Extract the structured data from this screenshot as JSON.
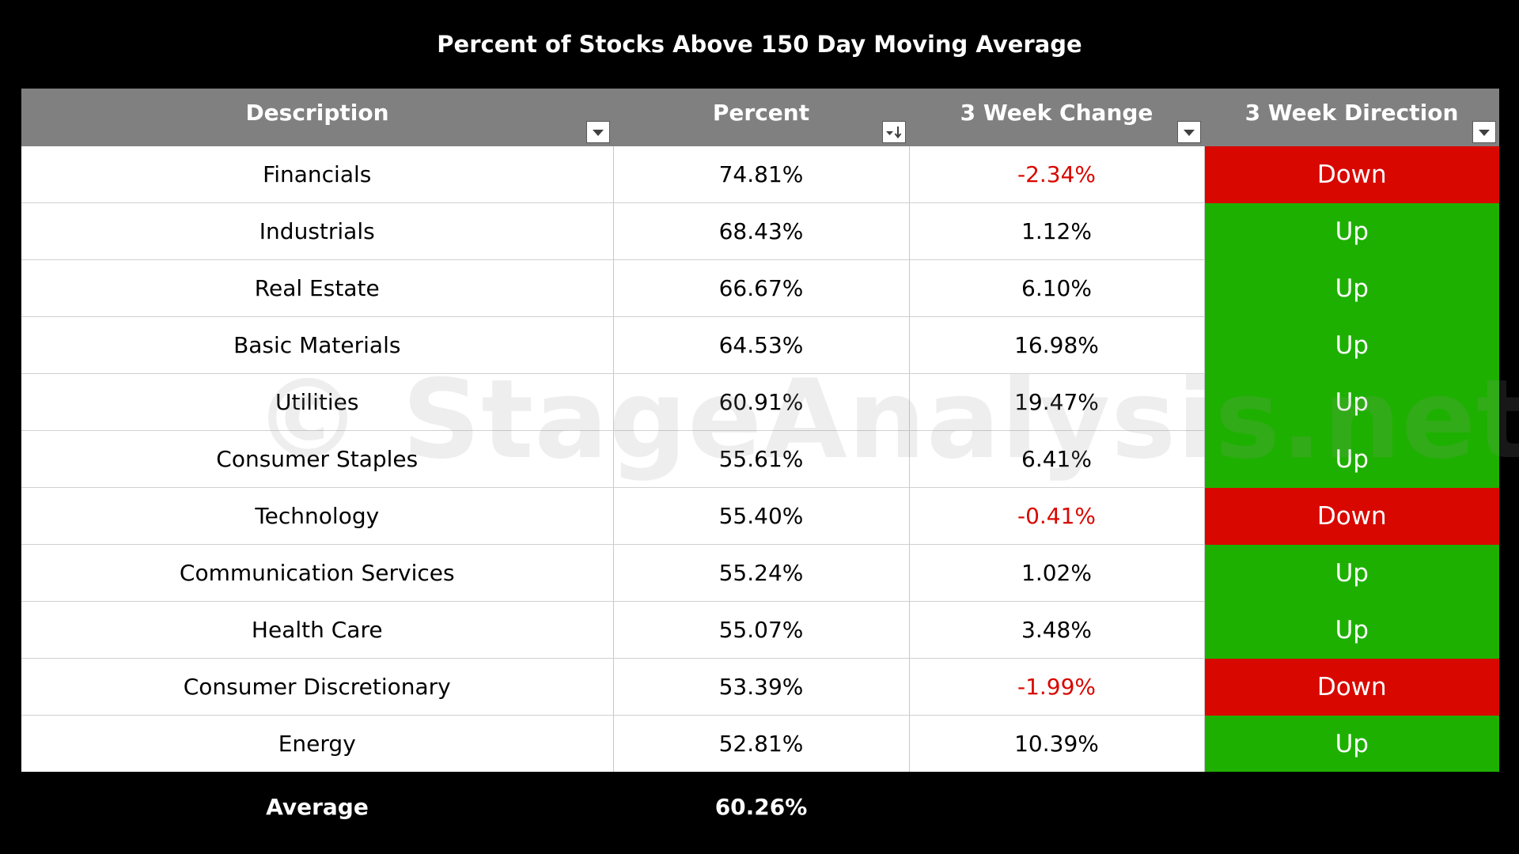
{
  "chart_data": {
    "type": "table",
    "title": "Percent of Stocks Above 150 Day Moving Average",
    "columns": [
      "Description",
      "Percent",
      "3 Week Change",
      "3 Week Direction"
    ],
    "rows": [
      {
        "description": "Financials",
        "percent": "74.81%",
        "change": "-2.34%",
        "direction": "Down"
      },
      {
        "description": "Industrials",
        "percent": "68.43%",
        "change": "1.12%",
        "direction": "Up"
      },
      {
        "description": "Real Estate",
        "percent": "66.67%",
        "change": "6.10%",
        "direction": "Up"
      },
      {
        "description": "Basic Materials",
        "percent": "64.53%",
        "change": "16.98%",
        "direction": "Up"
      },
      {
        "description": "Utilities",
        "percent": "60.91%",
        "change": "19.47%",
        "direction": "Up"
      },
      {
        "description": "Consumer Staples",
        "percent": "55.61%",
        "change": "6.41%",
        "direction": "Up"
      },
      {
        "description": "Technology",
        "percent": "55.40%",
        "change": "-0.41%",
        "direction": "Down"
      },
      {
        "description": "Communication Services",
        "percent": "55.24%",
        "change": "1.02%",
        "direction": "Up"
      },
      {
        "description": "Health Care",
        "percent": "55.07%",
        "change": "3.48%",
        "direction": "Up"
      },
      {
        "description": "Consumer Discretionary",
        "percent": "53.39%",
        "change": "-1.99%",
        "direction": "Down"
      },
      {
        "description": "Energy",
        "percent": "52.81%",
        "change": "10.39%",
        "direction": "Up"
      }
    ],
    "footer": {
      "label": "Average",
      "value": "60.26%"
    },
    "watermark": "© StageAnalysis.net",
    "filter_icons": [
      "filter-dropdown-icon",
      "sort-descending-icon",
      "filter-dropdown-icon",
      "filter-dropdown-icon"
    ],
    "colors": {
      "background": "#000000",
      "header_bg": "#808080",
      "up": "#1eb000",
      "down": "#d80800",
      "negative_text": "#d80800",
      "text": "#000000"
    }
  }
}
